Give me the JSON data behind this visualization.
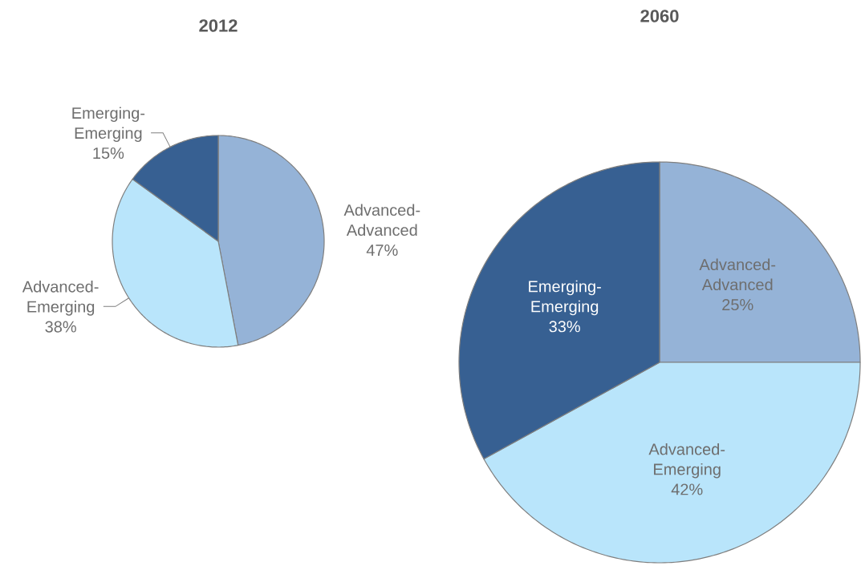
{
  "chart_data": [
    {
      "type": "pie",
      "title": "2012",
      "categories": [
        "Advanced-Advanced",
        "Advanced-Emerging",
        "Emerging-Emerging"
      ],
      "values": [
        47,
        38,
        15
      ],
      "colors": [
        "#95b3d7",
        "#b9e5fb",
        "#376092"
      ],
      "value_labels": [
        "47%",
        "38%",
        "15%"
      ]
    },
    {
      "type": "pie",
      "title": "2060",
      "categories": [
        "Advanced-Advanced",
        "Advanced-Emerging",
        "Emerging-Emerging"
      ],
      "values": [
        25,
        42,
        33
      ],
      "colors": [
        "#95b3d7",
        "#b9e5fb",
        "#376092"
      ],
      "value_labels": [
        "25%",
        "42%",
        "33%"
      ]
    }
  ]
}
